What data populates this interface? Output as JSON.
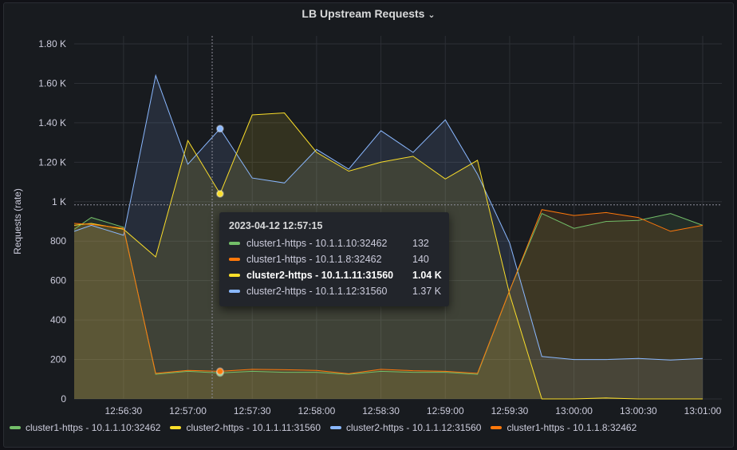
{
  "panel": {
    "title": "LB Upstream Requests",
    "title_icon": "chevron-down-icon"
  },
  "chart_data": {
    "type": "area",
    "title": "LB Upstream Requests",
    "ylabel": "Requests (rate)",
    "xlabel": "",
    "ylim": [
      0,
      1800
    ],
    "xlim": [
      "12:56:07",
      "13:01:00"
    ],
    "grid": true,
    "legend_placement": "bottom-left",
    "yticks": [
      "0",
      "200",
      "400",
      "600",
      "800",
      "1 K",
      "1.20 K",
      "1.40 K",
      "1.60 K",
      "1.80 K"
    ],
    "ytick_values": [
      0,
      200,
      400,
      600,
      800,
      1000,
      1200,
      1400,
      1600,
      1800
    ],
    "xticks": [
      "12:56:30",
      "12:57:00",
      "12:57:30",
      "12:58:00",
      "12:58:30",
      "12:59:00",
      "12:59:30",
      "13:00:00",
      "13:00:30",
      "13:01:00"
    ],
    "x": [
      "12:56:07",
      "12:56:15",
      "12:56:30",
      "12:56:45",
      "12:57:00",
      "12:57:15",
      "12:57:30",
      "12:57:45",
      "12:58:00",
      "12:58:15",
      "12:58:30",
      "12:58:45",
      "12:59:00",
      "12:59:15",
      "12:59:30",
      "12:59:45",
      "13:00:00",
      "13:00:15",
      "13:00:30",
      "13:00:45",
      "13:01:00"
    ],
    "series": [
      {
        "name": "cluster1-https - 10.1.1.10:32462",
        "color": "#73bf69",
        "values": [
          860,
          920,
          870,
          125,
          140,
          132,
          140,
          135,
          135,
          125,
          140,
          135,
          135,
          125,
          550,
          940,
          865,
          900,
          905,
          940,
          880
        ]
      },
      {
        "name": "cluster2-https - 10.1.1.11:31560",
        "color": "#fade2a",
        "values": [
          880,
          890,
          860,
          720,
          1310,
          1040,
          1440,
          1450,
          1250,
          1155,
          1200,
          1230,
          1115,
          1210,
          530,
          0,
          0,
          5,
          0,
          0,
          0
        ]
      },
      {
        "name": "cluster2-https - 10.1.1.12:31560",
        "color": "#8ab8ff",
        "values": [
          850,
          880,
          830,
          1640,
          1190,
          1370,
          1120,
          1095,
          1265,
          1165,
          1360,
          1250,
          1415,
          1140,
          790,
          215,
          200,
          200,
          205,
          197,
          205
        ]
      },
      {
        "name": "cluster1-https - 10.1.1.8:32462",
        "color": "#ff780a",
        "values": [
          890,
          885,
          865,
          130,
          145,
          140,
          150,
          148,
          145,
          128,
          150,
          143,
          140,
          130,
          550,
          960,
          930,
          945,
          920,
          850,
          880
        ]
      }
    ],
    "threshold_line": 1000
  },
  "tooltip": {
    "time": "2023-04-12 12:57:15",
    "rows": [
      {
        "label": "cluster1-https - 10.1.1.10:32462",
        "value": "132",
        "color": "#73bf69"
      },
      {
        "label": "cluster1-https - 10.1.1.8:32462",
        "value": "140",
        "color": "#ff780a"
      },
      {
        "label": "cluster2-https - 10.1.1.11:31560",
        "value": "1.04 K",
        "color": "#fade2a"
      },
      {
        "label": "cluster2-https - 10.1.1.12:31560",
        "value": "1.37 K",
        "color": "#8ab8ff"
      }
    ]
  }
}
